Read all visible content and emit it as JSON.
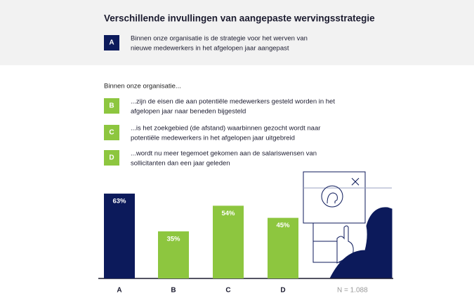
{
  "chart_data": {
    "type": "bar",
    "title": "Verschillende invullingen van aangepaste wervingsstrategie",
    "subtitle": "Binnen onze organisatie...",
    "legend": [
      {
        "key": "A",
        "color": "#0c1a5b",
        "lines": [
          "Binnen onze organisatie is de strategie voor het werven van",
          "nieuwe medewerkers in het afgelopen jaar aangepast"
        ]
      },
      {
        "key": "B",
        "color": "#8dc63f",
        "lines": [
          "...zijn de eisen die aan potentiële medewerkers gesteld worden in het",
          "afgelopen jaar naar beneden bijgesteld"
        ]
      },
      {
        "key": "C",
        "color": "#8dc63f",
        "lines": [
          "...is het zoekgebied (de afstand) waarbinnen gezocht wordt naar",
          "potentiële medewerkers in het afgelopen jaar uitgebreid"
        ]
      },
      {
        "key": "D",
        "color": "#8dc63f",
        "lines": [
          "...wordt nu meer tegemoet gekomen aan de salariswensen van",
          "sollicitanten dan een jaar geleden"
        ]
      }
    ],
    "categories": [
      "A",
      "B",
      "C",
      "D"
    ],
    "values": [
      63,
      35,
      54,
      45
    ],
    "value_labels": [
      "63%",
      "35%",
      "54%",
      "45%"
    ],
    "colors": [
      "#0c1a5b",
      "#8dc63f",
      "#8dc63f",
      "#8dc63f"
    ],
    "ylim": [
      0,
      100
    ],
    "note": "N = 1.088"
  }
}
